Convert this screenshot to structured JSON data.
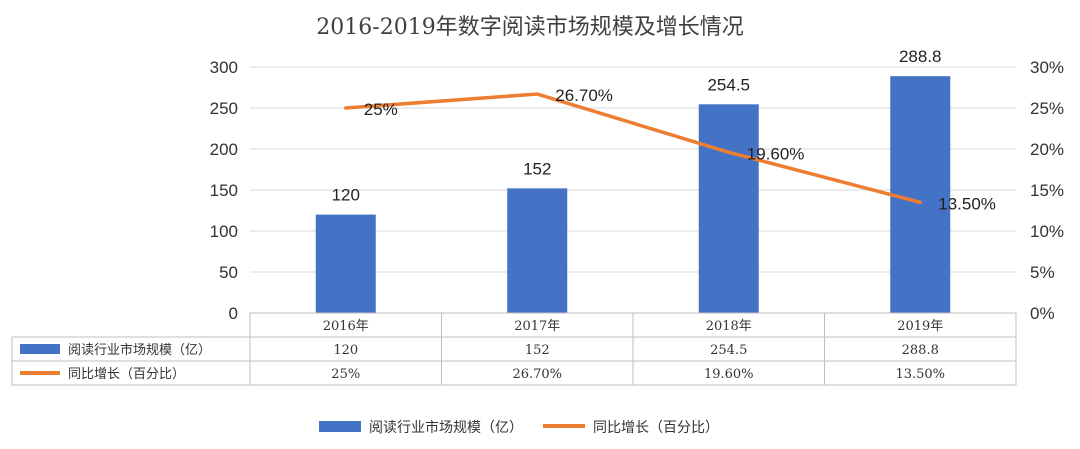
{
  "chart_data": {
    "type": "bar+line",
    "title": "2016-2019年数字阅读市场规模及增长情况",
    "categories": [
      "2016年",
      "2017年",
      "2018年",
      "2019年"
    ],
    "series": [
      {
        "name": "阅读行业市场规模（亿）",
        "type": "bar",
        "axis": "left",
        "values": [
          120,
          152,
          254.5,
          288.8
        ],
        "labels": [
          "120",
          "152",
          "254.5",
          "288.8"
        ],
        "color": "#4472c4"
      },
      {
        "name": "同比增长（百分比）",
        "type": "line",
        "axis": "right",
        "values": [
          25,
          26.7,
          19.6,
          13.5
        ],
        "labels": [
          "25%",
          "26.70%",
          "19.60%",
          "13.50%"
        ],
        "color": "#ed7d31"
      }
    ],
    "left_axis": {
      "ylim": [
        0,
        300
      ],
      "ticks": [
        0,
        50,
        100,
        150,
        200,
        250,
        300
      ],
      "tick_labels": [
        "0",
        "50",
        "100",
        "150",
        "200",
        "250",
        "300"
      ]
    },
    "right_axis": {
      "ylim": [
        0,
        30
      ],
      "ticks": [
        0,
        5,
        10,
        15,
        20,
        25,
        30
      ],
      "tick_labels": [
        "0%",
        "5%",
        "10%",
        "15%",
        "20%",
        "25%",
        "30%"
      ]
    },
    "grid": true,
    "data_table": true,
    "legend_position": "bottom"
  }
}
